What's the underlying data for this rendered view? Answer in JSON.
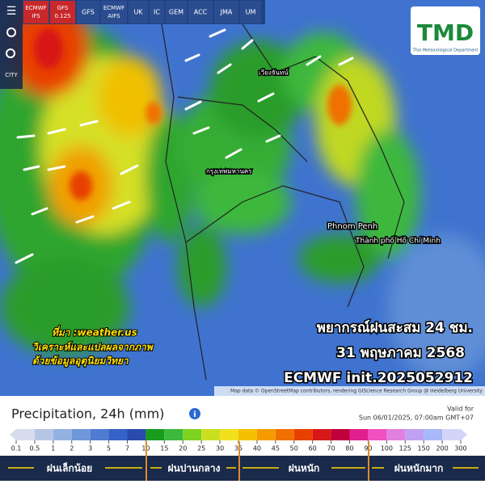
{
  "tabs": [
    "ECMWF IFS",
    "GFS 0.125",
    "GFS",
    "ECMWF AIFS",
    "UK",
    "IC",
    "GEM",
    "ACC",
    "JMA",
    "UM"
  ],
  "active_tabs": [
    0,
    1
  ],
  "sidebar": {
    "city_label": "CITY"
  },
  "logo": {
    "title": "TMD",
    "subtitle": "Thai Meteorological Department"
  },
  "map_labels": [
    "Phnom Penh",
    "Thành phố Hồ Chí Minh",
    "กรุงเทพมหานคร",
    "เวียงจันทน์"
  ],
  "source": [
    "ที่มา :weather.us",
    "วิเคราะห์และแปลผลจากภาพ",
    "ด้วยข้อมูลอุตุนิยมวิทยา"
  ],
  "headline": [
    "พยากรณ์ฝนสะสม 24 ชม.",
    "31 พฤษภาคม 2568",
    "ECMWF init.2025052912"
  ],
  "attribution": "Map data © OpenStreetMap contributors, rendering GIScience Research Group @ Heidelberg University",
  "legend": {
    "title": "Precipitation, 24h (mm)",
    "valid_label": "Valid for",
    "valid_time": "Sun 06/01/2025, 07:00am GMT+07",
    "ticks": [
      0.1,
      0.5,
      1,
      2,
      3,
      5,
      7,
      10,
      15,
      20,
      25,
      30,
      35,
      40,
      45,
      50,
      60,
      70,
      80,
      90,
      100,
      125,
      150,
      200,
      300
    ],
    "colors": [
      "#d6dceb",
      "#b4c6e4",
      "#93b2e2",
      "#6f97da",
      "#4f7cd2",
      "#3562c6",
      "#2a4aae",
      "#189c1c",
      "#3cb83c",
      "#7ed321",
      "#c8e020",
      "#f0e020",
      "#f5c000",
      "#f59a00",
      "#f07000",
      "#e84000",
      "#d81818",
      "#c0003c",
      "#e0208c",
      "#f050c0",
      "#e080e0",
      "#c0a0f0",
      "#a8b8f8",
      "#d4d4f8"
    ]
  },
  "categories": [
    "ฝนเล็กน้อย",
    "ฝนปานกลาง",
    "ฝนหนัก",
    "ฝนหนักมาก"
  ]
}
